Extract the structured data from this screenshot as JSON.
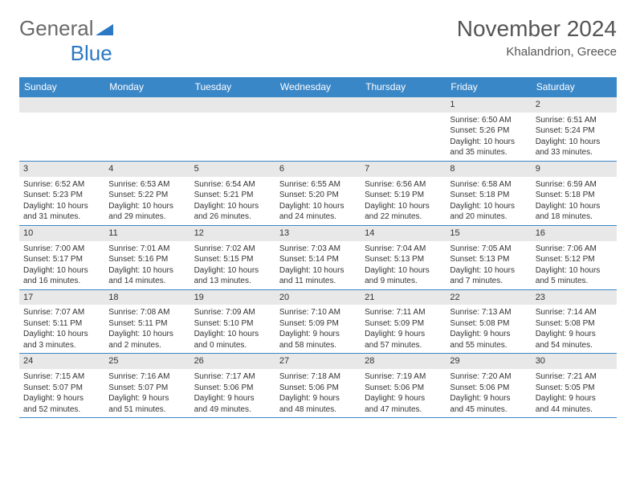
{
  "logo": {
    "text1": "General",
    "text2": "Blue"
  },
  "title": "November 2024",
  "subtitle": "Khalandrion, Greece",
  "header_bg": "#3a87c8",
  "daynum_bg": "#e8e8e8",
  "border_color": "#3a87c8",
  "day_names": [
    "Sunday",
    "Monday",
    "Tuesday",
    "Wednesday",
    "Thursday",
    "Friday",
    "Saturday"
  ],
  "weeks": [
    [
      {
        "n": "",
        "lines": []
      },
      {
        "n": "",
        "lines": []
      },
      {
        "n": "",
        "lines": []
      },
      {
        "n": "",
        "lines": []
      },
      {
        "n": "",
        "lines": []
      },
      {
        "n": "1",
        "lines": [
          "Sunrise: 6:50 AM",
          "Sunset: 5:26 PM",
          "Daylight: 10 hours",
          "and 35 minutes."
        ]
      },
      {
        "n": "2",
        "lines": [
          "Sunrise: 6:51 AM",
          "Sunset: 5:24 PM",
          "Daylight: 10 hours",
          "and 33 minutes."
        ]
      }
    ],
    [
      {
        "n": "3",
        "lines": [
          "Sunrise: 6:52 AM",
          "Sunset: 5:23 PM",
          "Daylight: 10 hours",
          "and 31 minutes."
        ]
      },
      {
        "n": "4",
        "lines": [
          "Sunrise: 6:53 AM",
          "Sunset: 5:22 PM",
          "Daylight: 10 hours",
          "and 29 minutes."
        ]
      },
      {
        "n": "5",
        "lines": [
          "Sunrise: 6:54 AM",
          "Sunset: 5:21 PM",
          "Daylight: 10 hours",
          "and 26 minutes."
        ]
      },
      {
        "n": "6",
        "lines": [
          "Sunrise: 6:55 AM",
          "Sunset: 5:20 PM",
          "Daylight: 10 hours",
          "and 24 minutes."
        ]
      },
      {
        "n": "7",
        "lines": [
          "Sunrise: 6:56 AM",
          "Sunset: 5:19 PM",
          "Daylight: 10 hours",
          "and 22 minutes."
        ]
      },
      {
        "n": "8",
        "lines": [
          "Sunrise: 6:58 AM",
          "Sunset: 5:18 PM",
          "Daylight: 10 hours",
          "and 20 minutes."
        ]
      },
      {
        "n": "9",
        "lines": [
          "Sunrise: 6:59 AM",
          "Sunset: 5:18 PM",
          "Daylight: 10 hours",
          "and 18 minutes."
        ]
      }
    ],
    [
      {
        "n": "10",
        "lines": [
          "Sunrise: 7:00 AM",
          "Sunset: 5:17 PM",
          "Daylight: 10 hours",
          "and 16 minutes."
        ]
      },
      {
        "n": "11",
        "lines": [
          "Sunrise: 7:01 AM",
          "Sunset: 5:16 PM",
          "Daylight: 10 hours",
          "and 14 minutes."
        ]
      },
      {
        "n": "12",
        "lines": [
          "Sunrise: 7:02 AM",
          "Sunset: 5:15 PM",
          "Daylight: 10 hours",
          "and 13 minutes."
        ]
      },
      {
        "n": "13",
        "lines": [
          "Sunrise: 7:03 AM",
          "Sunset: 5:14 PM",
          "Daylight: 10 hours",
          "and 11 minutes."
        ]
      },
      {
        "n": "14",
        "lines": [
          "Sunrise: 7:04 AM",
          "Sunset: 5:13 PM",
          "Daylight: 10 hours",
          "and 9 minutes."
        ]
      },
      {
        "n": "15",
        "lines": [
          "Sunrise: 7:05 AM",
          "Sunset: 5:13 PM",
          "Daylight: 10 hours",
          "and 7 minutes."
        ]
      },
      {
        "n": "16",
        "lines": [
          "Sunrise: 7:06 AM",
          "Sunset: 5:12 PM",
          "Daylight: 10 hours",
          "and 5 minutes."
        ]
      }
    ],
    [
      {
        "n": "17",
        "lines": [
          "Sunrise: 7:07 AM",
          "Sunset: 5:11 PM",
          "Daylight: 10 hours",
          "and 3 minutes."
        ]
      },
      {
        "n": "18",
        "lines": [
          "Sunrise: 7:08 AM",
          "Sunset: 5:11 PM",
          "Daylight: 10 hours",
          "and 2 minutes."
        ]
      },
      {
        "n": "19",
        "lines": [
          "Sunrise: 7:09 AM",
          "Sunset: 5:10 PM",
          "Daylight: 10 hours",
          "and 0 minutes."
        ]
      },
      {
        "n": "20",
        "lines": [
          "Sunrise: 7:10 AM",
          "Sunset: 5:09 PM",
          "Daylight: 9 hours",
          "and 58 minutes."
        ]
      },
      {
        "n": "21",
        "lines": [
          "Sunrise: 7:11 AM",
          "Sunset: 5:09 PM",
          "Daylight: 9 hours",
          "and 57 minutes."
        ]
      },
      {
        "n": "22",
        "lines": [
          "Sunrise: 7:13 AM",
          "Sunset: 5:08 PM",
          "Daylight: 9 hours",
          "and 55 minutes."
        ]
      },
      {
        "n": "23",
        "lines": [
          "Sunrise: 7:14 AM",
          "Sunset: 5:08 PM",
          "Daylight: 9 hours",
          "and 54 minutes."
        ]
      }
    ],
    [
      {
        "n": "24",
        "lines": [
          "Sunrise: 7:15 AM",
          "Sunset: 5:07 PM",
          "Daylight: 9 hours",
          "and 52 minutes."
        ]
      },
      {
        "n": "25",
        "lines": [
          "Sunrise: 7:16 AM",
          "Sunset: 5:07 PM",
          "Daylight: 9 hours",
          "and 51 minutes."
        ]
      },
      {
        "n": "26",
        "lines": [
          "Sunrise: 7:17 AM",
          "Sunset: 5:06 PM",
          "Daylight: 9 hours",
          "and 49 minutes."
        ]
      },
      {
        "n": "27",
        "lines": [
          "Sunrise: 7:18 AM",
          "Sunset: 5:06 PM",
          "Daylight: 9 hours",
          "and 48 minutes."
        ]
      },
      {
        "n": "28",
        "lines": [
          "Sunrise: 7:19 AM",
          "Sunset: 5:06 PM",
          "Daylight: 9 hours",
          "and 47 minutes."
        ]
      },
      {
        "n": "29",
        "lines": [
          "Sunrise: 7:20 AM",
          "Sunset: 5:06 PM",
          "Daylight: 9 hours",
          "and 45 minutes."
        ]
      },
      {
        "n": "30",
        "lines": [
          "Sunrise: 7:21 AM",
          "Sunset: 5:05 PM",
          "Daylight: 9 hours",
          "and 44 minutes."
        ]
      }
    ]
  ]
}
